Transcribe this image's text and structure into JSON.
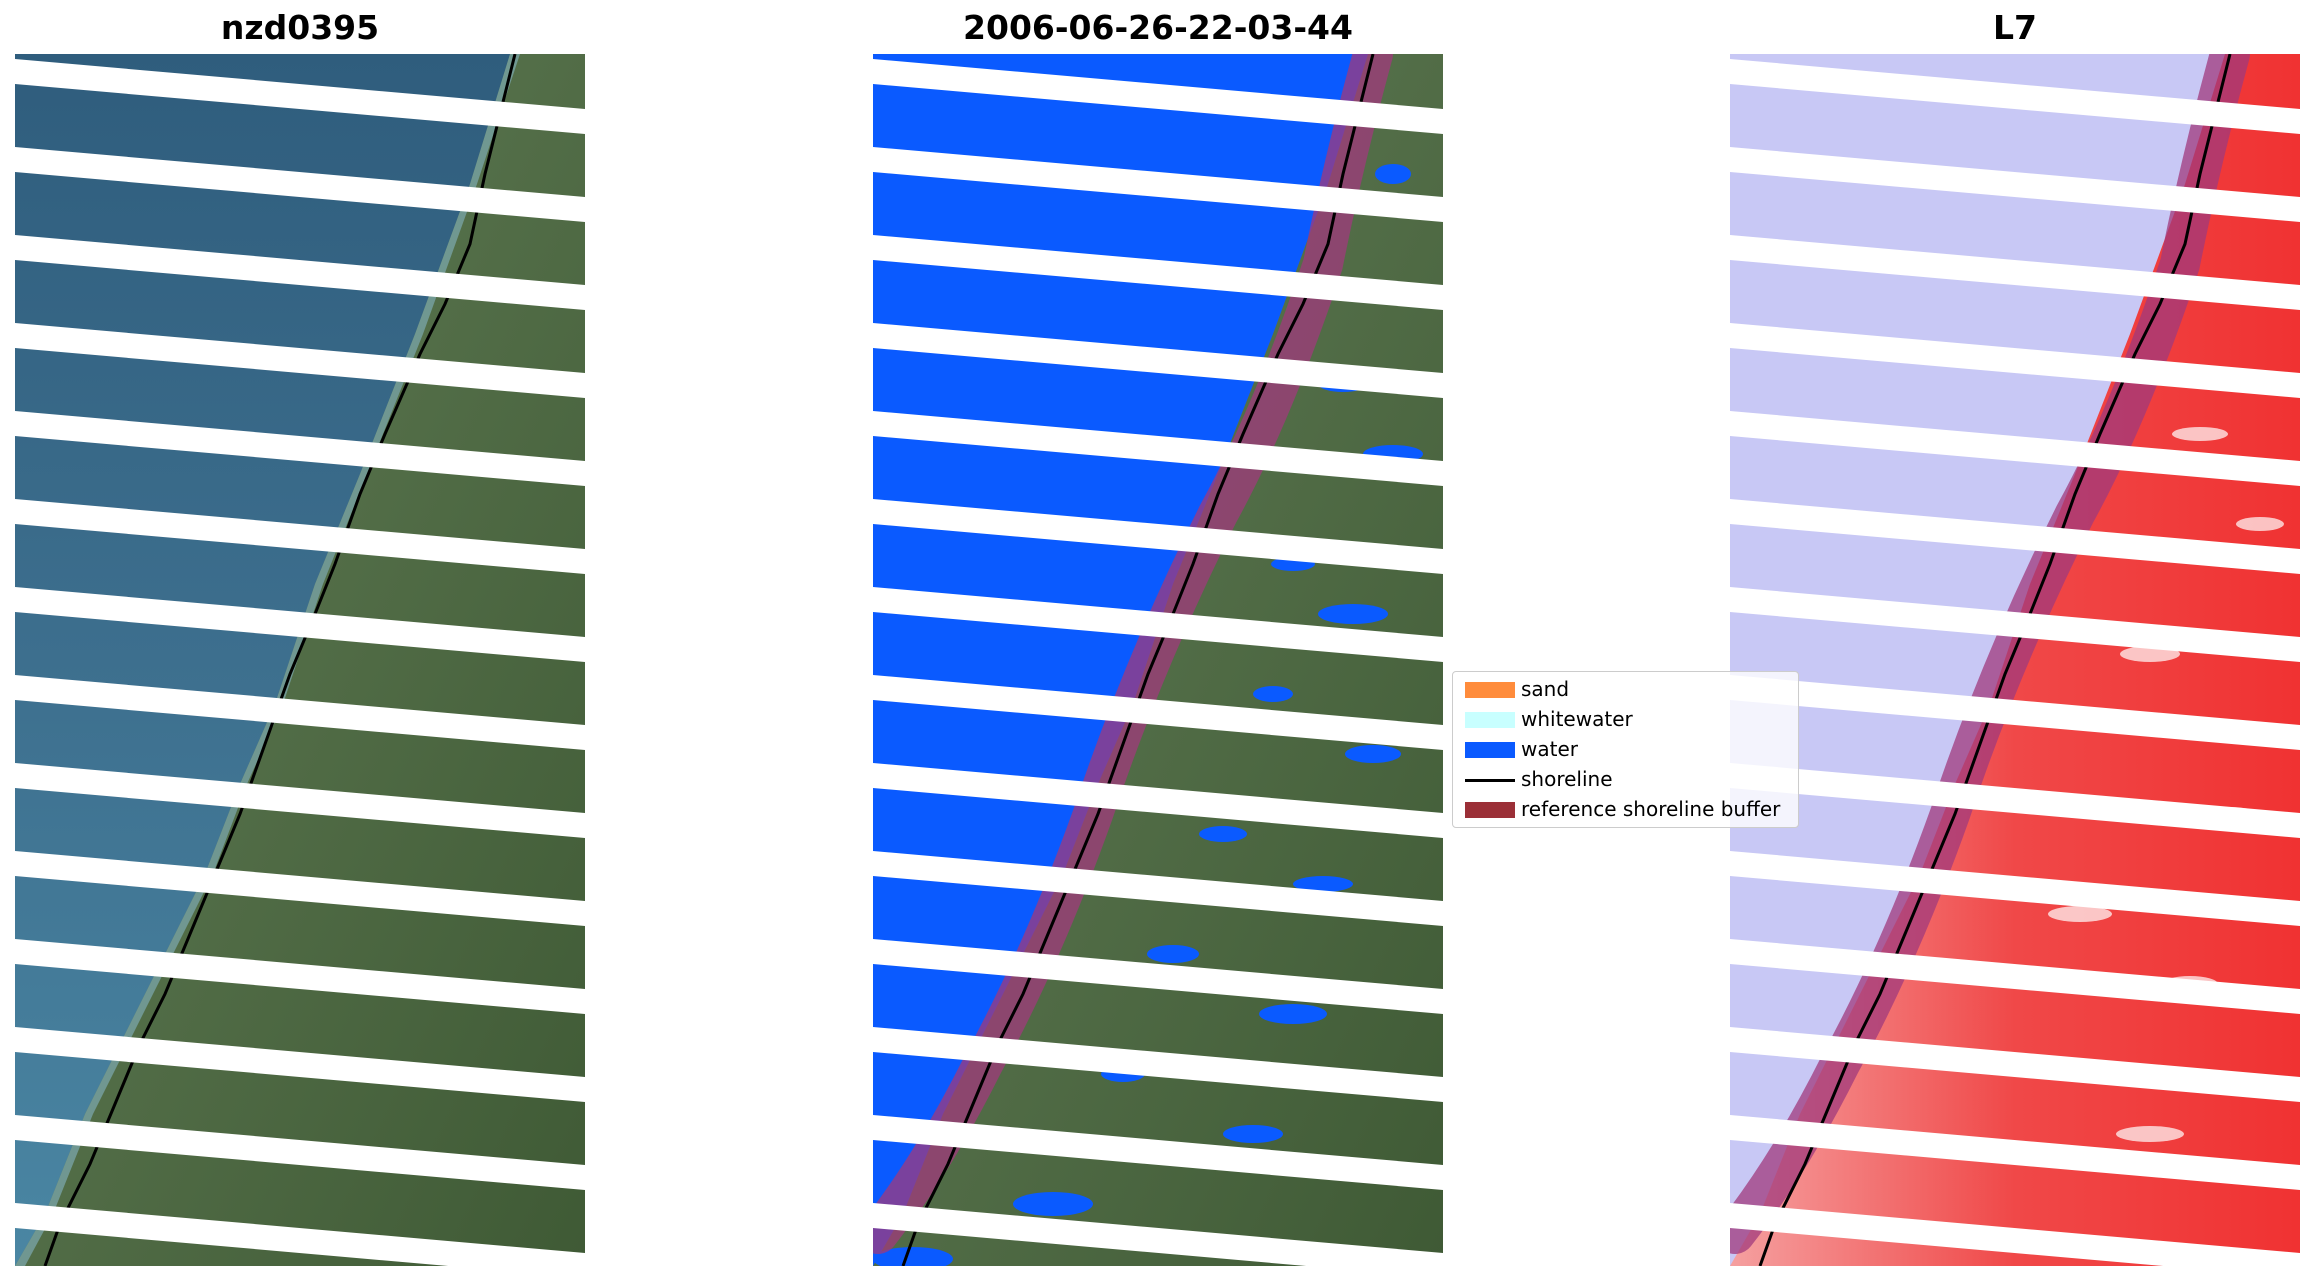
{
  "panels": [
    {
      "title": "nzd0395"
    },
    {
      "title": "2006-06-26-22-03-44"
    },
    {
      "title": "L7"
    }
  ],
  "legend": {
    "placement": "right of centre panel",
    "items": [
      {
        "label": "sand",
        "color": "#ff8c3c",
        "kind": "patch"
      },
      {
        "label": "whitewater",
        "color": "#c8ffff",
        "kind": "patch"
      },
      {
        "label": "water",
        "color": "#0a5aff",
        "kind": "patch"
      },
      {
        "label": "shoreline",
        "color": "#000000",
        "kind": "line"
      },
      {
        "label": "reference shoreline buffer",
        "color": "#9b2f37",
        "kind": "patch"
      }
    ]
  },
  "colors": {
    "sea": "#3f6e90",
    "land": "#4f6a3f",
    "water_class": "#0a5aff",
    "buffer": "#a03a7c",
    "index_water": "#c8c8f5",
    "index_land": "#f03c3c",
    "gap": "#ffffff"
  }
}
